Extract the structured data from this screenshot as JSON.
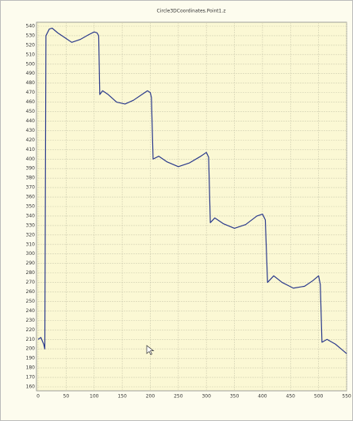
{
  "chart_data": {
    "type": "line",
    "title": "Circle3DCoordinates.Point1.z",
    "x": [
      0,
      5,
      10,
      12,
      14,
      20,
      25,
      35,
      50,
      60,
      75,
      90,
      100,
      105,
      108,
      110,
      115,
      125,
      140,
      155,
      170,
      185,
      195,
      200,
      202,
      205,
      215,
      230,
      250,
      270,
      290,
      300,
      304,
      307,
      315,
      330,
      350,
      370,
      390,
      400,
      405,
      409,
      420,
      435,
      455,
      475,
      490,
      500,
      503,
      506,
      515,
      530,
      540,
      550
    ],
    "values": [
      210,
      212,
      205,
      200,
      530,
      537,
      538,
      533,
      527,
      523,
      526,
      531,
      534,
      533,
      530,
      468,
      472,
      468,
      460,
      458,
      462,
      468,
      472,
      470,
      465,
      400,
      403,
      397,
      392,
      396,
      403,
      407,
      402,
      333,
      338,
      332,
      327,
      331,
      340,
      342,
      336,
      270,
      277,
      270,
      264,
      266,
      272,
      277,
      268,
      207,
      210,
      205,
      200,
      195
    ],
    "color": "#2b3a8c",
    "xlim": [
      0,
      550
    ],
    "xticks": [
      0,
      50,
      100,
      150,
      200,
      250,
      300,
      350,
      400,
      450,
      500,
      550
    ],
    "ylim": [
      160,
      540
    ],
    "yticks": [
      160,
      170,
      180,
      190,
      200,
      210,
      220,
      230,
      240,
      250,
      260,
      270,
      280,
      290,
      300,
      310,
      320,
      330,
      340,
      350,
      360,
      370,
      380,
      390,
      400,
      410,
      420,
      430,
      440,
      450,
      460,
      470,
      480,
      490,
      500,
      510,
      520,
      530,
      540
    ],
    "grid": true
  }
}
